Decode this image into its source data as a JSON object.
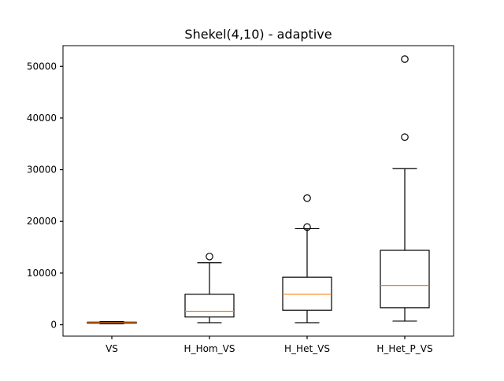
{
  "chart_data": {
    "type": "box",
    "title": "Shekel(4,10) - adaptive",
    "xlabel": "",
    "ylabel": "",
    "ylim": [
      -2200,
      54000
    ],
    "yticks": [
      0,
      10000,
      20000,
      30000,
      40000,
      50000
    ],
    "ytick_labels": [
      "0",
      "10000",
      "20000",
      "30000",
      "40000",
      "50000"
    ],
    "grid": false,
    "categories": [
      "VS",
      "H_Hom_VS",
      "H_Het_VS",
      "H_Het_P_VS"
    ],
    "boxes": [
      {
        "whislo": 200,
        "q1": 300,
        "med": 400,
        "q3": 500,
        "whishi": 600,
        "fliers": []
      },
      {
        "whislo": 400,
        "q1": 1500,
        "med": 2600,
        "q3": 5900,
        "whishi": 12000,
        "fliers": [
          13200
        ]
      },
      {
        "whislo": 400,
        "q1": 2800,
        "med": 5900,
        "q3": 9200,
        "whishi": 18600,
        "fliers": [
          18900,
          24500
        ]
      },
      {
        "whislo": 700,
        "q1": 3300,
        "med": 7600,
        "q3": 14400,
        "whishi": 30200,
        "fliers": [
          36300,
          51400
        ]
      }
    ],
    "colors": {
      "box": "#000000",
      "median": "#ff7f0e",
      "background": "#ffffff"
    }
  }
}
